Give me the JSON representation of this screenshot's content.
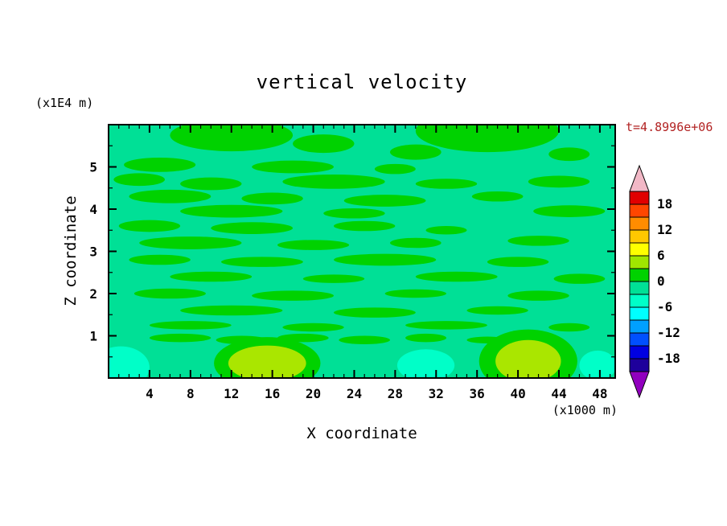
{
  "title": "vertical velocity",
  "y_unit_label": "(x1E4 m)",
  "x_unit_label": "(x1000 m)",
  "x_axis_label": "X coordinate",
  "y_axis_label": "Z coordinate",
  "time_label": "t=4.8996e+06",
  "colors": {
    "background": "#FFFFFF",
    "axis": "#000000",
    "text": "#000000",
    "time_label": "#B22222"
  },
  "chart_data": {
    "type": "heatmap",
    "subtype": "filled-contour",
    "title": "vertical velocity",
    "xlabel": "X coordinate",
    "ylabel": "Z coordinate",
    "x_units": "x1000 m",
    "y_units": "x1E4 m",
    "xlim": [
      0,
      49.5
    ],
    "ylim": [
      0,
      6
    ],
    "x_ticks": [
      4,
      8,
      12,
      16,
      20,
      24,
      28,
      32,
      36,
      40,
      44,
      48
    ],
    "y_ticks": [
      1,
      2,
      3,
      4,
      5
    ],
    "grid": false,
    "legend_position": "right-colorbar",
    "time": "t=4.8996e+06",
    "colorbar": {
      "levels": [
        -21,
        -18,
        -15,
        -12,
        -9,
        -6,
        -3,
        0,
        3,
        6,
        9,
        12,
        15,
        18,
        21
      ],
      "labels": [
        "18",
        "12",
        "6",
        "0",
        "-6",
        "-12",
        "-18"
      ],
      "colors_bottom_to_top": [
        "#1E009B",
        "#0000E1",
        "#0050FF",
        "#00A0FF",
        "#00FFFF",
        "#00FFC8",
        "#00E096",
        "#00D200",
        "#A0E600",
        "#FFFF00",
        "#FFC800",
        "#FF8C00",
        "#FF4600",
        "#E10000"
      ],
      "over_color": "#F2B8C6",
      "under_color": "#9100BE"
    },
    "field": {
      "description": "vertical velocity field, mostly in the -3..0 band (spring green) with thin 0..3 green streaks, yellow-green (3..6) maxima and pale-cyan (-6..-3) minima near the bottom boundary",
      "background_color": "#00E096",
      "palette": {
        "g": "#00D200",
        "yg": "#AAE600",
        "cy": "#00FFC8"
      },
      "blobs": [
        [
          12,
          5.75,
          6,
          0.38,
          "g"
        ],
        [
          21,
          5.55,
          3,
          0.22,
          "g"
        ],
        [
          37,
          5.85,
          7,
          0.5,
          "g"
        ],
        [
          30,
          5.35,
          2.5,
          0.18,
          "g"
        ],
        [
          45,
          5.3,
          2,
          0.16,
          "g"
        ],
        [
          5,
          5.05,
          3.5,
          0.17,
          "g"
        ],
        [
          18,
          5.0,
          4,
          0.15,
          "g"
        ],
        [
          28,
          4.95,
          2,
          0.12,
          "g"
        ],
        [
          3,
          4.7,
          2.5,
          0.15,
          "g"
        ],
        [
          10,
          4.6,
          3,
          0.15,
          "g"
        ],
        [
          22,
          4.65,
          5,
          0.17,
          "g"
        ],
        [
          33,
          4.6,
          3,
          0.12,
          "g"
        ],
        [
          44,
          4.65,
          3,
          0.14,
          "g"
        ],
        [
          6,
          4.3,
          4,
          0.16,
          "g"
        ],
        [
          16,
          4.25,
          3,
          0.14,
          "g"
        ],
        [
          27,
          4.2,
          4,
          0.14,
          "g"
        ],
        [
          38,
          4.3,
          2.5,
          0.12,
          "g"
        ],
        [
          12,
          3.95,
          5,
          0.15,
          "g"
        ],
        [
          24,
          3.9,
          3,
          0.12,
          "g"
        ],
        [
          45,
          3.95,
          3.5,
          0.14,
          "g"
        ],
        [
          4,
          3.6,
          3,
          0.14,
          "g"
        ],
        [
          14,
          3.55,
          4,
          0.14,
          "g"
        ],
        [
          25,
          3.6,
          3,
          0.12,
          "g"
        ],
        [
          33,
          3.5,
          2,
          0.1,
          "g"
        ],
        [
          8,
          3.2,
          5,
          0.15,
          "g"
        ],
        [
          20,
          3.15,
          3.5,
          0.12,
          "g"
        ],
        [
          30,
          3.2,
          2.5,
          0.12,
          "g"
        ],
        [
          42,
          3.25,
          3,
          0.12,
          "g"
        ],
        [
          5,
          2.8,
          3,
          0.12,
          "g"
        ],
        [
          15,
          2.75,
          4,
          0.12,
          "g"
        ],
        [
          27,
          2.8,
          5,
          0.14,
          "g"
        ],
        [
          40,
          2.75,
          3,
          0.12,
          "g"
        ],
        [
          10,
          2.4,
          4,
          0.12,
          "g"
        ],
        [
          22,
          2.35,
          3,
          0.1,
          "g"
        ],
        [
          34,
          2.4,
          4,
          0.12,
          "g"
        ],
        [
          46,
          2.35,
          2.5,
          0.12,
          "g"
        ],
        [
          6,
          2.0,
          3.5,
          0.12,
          "g"
        ],
        [
          18,
          1.95,
          4,
          0.12,
          "g"
        ],
        [
          30,
          2.0,
          3,
          0.1,
          "g"
        ],
        [
          42,
          1.95,
          3,
          0.12,
          "g"
        ],
        [
          12,
          1.6,
          5,
          0.12,
          "g"
        ],
        [
          26,
          1.55,
          4,
          0.12,
          "g"
        ],
        [
          38,
          1.6,
          3,
          0.1,
          "g"
        ],
        [
          8,
          1.25,
          4,
          0.1,
          "g"
        ],
        [
          20,
          1.2,
          3,
          0.1,
          "g"
        ],
        [
          33,
          1.25,
          4,
          0.1,
          "g"
        ],
        [
          45,
          1.2,
          2,
          0.1,
          "g"
        ],
        [
          7,
          0.95,
          3,
          0.1,
          "g"
        ],
        [
          13,
          0.9,
          2.5,
          0.1,
          "g"
        ],
        [
          19,
          0.95,
          2.5,
          0.1,
          "g"
        ],
        [
          25,
          0.9,
          2.5,
          0.1,
          "g"
        ],
        [
          31,
          0.95,
          2,
          0.1,
          "g"
        ],
        [
          37,
          0.9,
          2,
          0.08,
          "g"
        ],
        [
          15.5,
          0.35,
          5.2,
          0.62,
          "g"
        ],
        [
          41,
          0.4,
          4.8,
          0.75,
          "g"
        ],
        [
          1.2,
          0.25,
          2.8,
          0.5,
          "cy"
        ],
        [
          15.5,
          0.35,
          3.8,
          0.42,
          "yg"
        ],
        [
          31,
          0.3,
          2.8,
          0.38,
          "cy"
        ],
        [
          41,
          0.4,
          3.2,
          0.5,
          "yg"
        ],
        [
          47.8,
          0.3,
          1.8,
          0.35,
          "cy"
        ]
      ]
    }
  }
}
